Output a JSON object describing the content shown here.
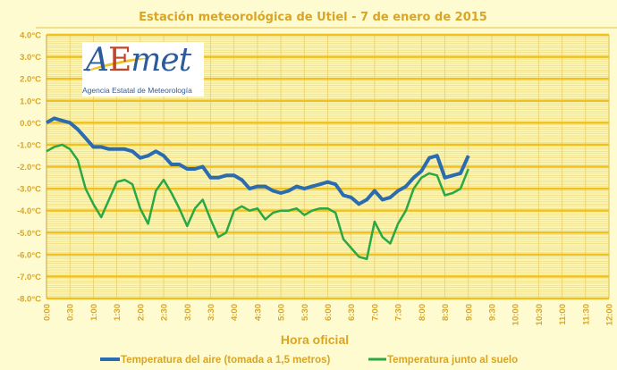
{
  "logo": {
    "mark": "AEmet",
    "subtitle": "Agencia Estatal de Meteorología"
  },
  "chart_data": {
    "type": "line",
    "title": "Estación meteorológica de Utiel - 7 de enero de 2015",
    "xlabel": "Hora oficial",
    "ylabel": "",
    "ylim": [
      -8,
      4
    ],
    "xlim": [
      "0:00",
      "12:00"
    ],
    "grid": true,
    "legend_position": "bottom",
    "yticks": [
      "4.0°C",
      "3.0°C",
      "2.0°C",
      "1.0°C",
      "0.0°C",
      "-1.0°C",
      "-2.0°C",
      "-3.0°C",
      "-4.0°C",
      "-5.0°C",
      "-6.0°C",
      "-7.0°C",
      "-8.0°C"
    ],
    "xticks": [
      "0:00",
      "0:30",
      "1:00",
      "1:30",
      "2:00",
      "2:30",
      "3:00",
      "3:30",
      "4:00",
      "4:30",
      "5:00",
      "5:30",
      "6:00",
      "6:30",
      "7:00",
      "7:30",
      "8:00",
      "8:30",
      "9:00",
      "9:30",
      "10:00",
      "10:30",
      "11:00",
      "11:30",
      "12:00"
    ],
    "x": [
      "0:00",
      "0:10",
      "0:20",
      "0:30",
      "0:40",
      "0:50",
      "1:00",
      "1:10",
      "1:20",
      "1:30",
      "1:40",
      "1:50",
      "2:00",
      "2:10",
      "2:20",
      "2:30",
      "2:40",
      "2:50",
      "3:00",
      "3:10",
      "3:20",
      "3:30",
      "3:40",
      "3:50",
      "4:00",
      "4:10",
      "4:20",
      "4:30",
      "4:40",
      "4:50",
      "5:00",
      "5:10",
      "5:20",
      "5:30",
      "5:40",
      "5:50",
      "6:00",
      "6:10",
      "6:20",
      "6:30",
      "6:40",
      "6:50",
      "7:00",
      "7:10",
      "7:20",
      "7:30",
      "7:40",
      "7:50",
      "8:00",
      "8:10",
      "8:20",
      "8:30",
      "8:40",
      "8:50",
      "9:00"
    ],
    "series": [
      {
        "name": "Temperatura del aire (tomada a 1,5 metros)",
        "color": "#2b6cb0",
        "values": [
          0.0,
          0.2,
          0.1,
          0.0,
          -0.3,
          -0.7,
          -1.1,
          -1.1,
          -1.2,
          -1.2,
          -1.2,
          -1.3,
          -1.6,
          -1.5,
          -1.3,
          -1.5,
          -1.9,
          -1.9,
          -2.1,
          -2.1,
          -2.0,
          -2.5,
          -2.5,
          -2.4,
          -2.4,
          -2.6,
          -3.0,
          -2.9,
          -2.9,
          -3.1,
          -3.2,
          -3.1,
          -2.9,
          -3.0,
          -2.9,
          -2.8,
          -2.7,
          -2.8,
          -3.3,
          -3.4,
          -3.7,
          -3.5,
          -3.1,
          -3.5,
          -3.4,
          -3.1,
          -2.9,
          -2.5,
          -2.2,
          -1.6,
          -1.5,
          -2.5,
          -2.4,
          -2.3,
          -1.5
        ]
      },
      {
        "name": "Temperatura junto al suelo",
        "color": "#2aa845",
        "values": [
          -1.3,
          -1.1,
          -1.0,
          -1.2,
          -1.7,
          -3.0,
          -3.7,
          -4.3,
          -3.5,
          -2.7,
          -2.6,
          -2.8,
          -3.9,
          -4.6,
          -3.1,
          -2.6,
          -3.2,
          -3.9,
          -4.7,
          -3.9,
          -3.5,
          -4.4,
          -5.2,
          -5.0,
          -4.0,
          -3.8,
          -4.0,
          -3.9,
          -4.4,
          -4.1,
          -4.0,
          -4.0,
          -3.9,
          -4.2,
          -4.0,
          -3.9,
          -3.9,
          -4.1,
          -5.3,
          -5.7,
          -6.1,
          -6.2,
          -4.5,
          -5.2,
          -5.5,
          -4.6,
          -4.0,
          -3.0,
          -2.5,
          -2.3,
          -2.4,
          -3.3,
          -3.2,
          -3.0,
          -2.1
        ]
      }
    ]
  }
}
